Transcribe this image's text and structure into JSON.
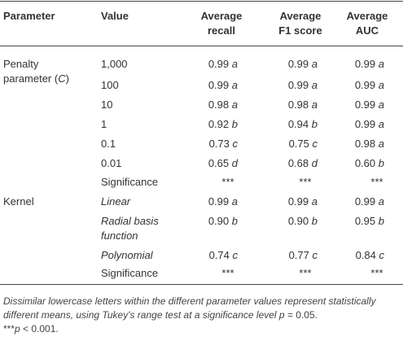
{
  "headers": {
    "parameter": "Parameter",
    "value": "Value",
    "recall_l1": "Average",
    "recall_l2": "recall",
    "f1_l1": "Average",
    "f1_l2": "F1 score",
    "auc_l1": "Average",
    "auc_l2": "AUC"
  },
  "groups": {
    "penalty_l1": "Penalty",
    "penalty_l2a": "parameter (",
    "penalty_l2b": "C",
    "penalty_l2c": ")",
    "kernel": "Kernel"
  },
  "penalty_rows": [
    {
      "value": "1,000",
      "recall": "0.99",
      "recall_l": "a",
      "f1": "0.99",
      "f1_l": "a",
      "auc": "0.99",
      "auc_l": "a"
    },
    {
      "value": "100",
      "recall": "0.99",
      "recall_l": "a",
      "f1": "0.99",
      "f1_l": "a",
      "auc": "0.99",
      "auc_l": "a"
    },
    {
      "value": "10",
      "recall": "0.98",
      "recall_l": "a",
      "f1": "0.98",
      "f1_l": "a",
      "auc": "0.99",
      "auc_l": "a"
    },
    {
      "value": "1",
      "recall": "0.92",
      "recall_l": "b",
      "f1": "0.94",
      "f1_l": "b",
      "auc": "0.99",
      "auc_l": "a"
    },
    {
      "value": "0.1",
      "recall": "0.73",
      "recall_l": "c",
      "f1": "0.75",
      "f1_l": "c",
      "auc": "0.98",
      "auc_l": "a"
    },
    {
      "value": "0.01",
      "recall": "0.65",
      "recall_l": "d",
      "f1": "0.68",
      "f1_l": "d",
      "auc": "0.60",
      "auc_l": "b"
    }
  ],
  "penalty_sig": {
    "label": "Significance",
    "recall": "***",
    "f1": "***",
    "auc": "***"
  },
  "kernel_rows": [
    {
      "value": "Linear",
      "recall": "0.99",
      "recall_l": "a",
      "f1": "0.99",
      "f1_l": "a",
      "auc": "0.99",
      "auc_l": "a"
    },
    {
      "value": "Radial basis",
      "value2": "function",
      "recall": "0.90",
      "recall_l": "b",
      "f1": "0.90",
      "f1_l": "b",
      "auc": "0.95",
      "auc_l": "b"
    },
    {
      "value": "Polynomial",
      "recall": "0.74",
      "recall_l": "c",
      "f1": "0.77",
      "f1_l": "c",
      "auc": "0.84",
      "auc_l": "c"
    }
  ],
  "kernel_sig": {
    "label": "Significance",
    "recall": "***",
    "f1": "***",
    "auc": "***"
  },
  "footnote": {
    "line1": "Dissimilar lowercase letters within the different parameter values represent statistically",
    "line2a": "different means, using Tukey's range test at a significance level ",
    "line2b": "p",
    "line2c": " = 0.05.",
    "line3a": "***",
    "line3b": "p",
    "line3c": " < 0.001."
  }
}
